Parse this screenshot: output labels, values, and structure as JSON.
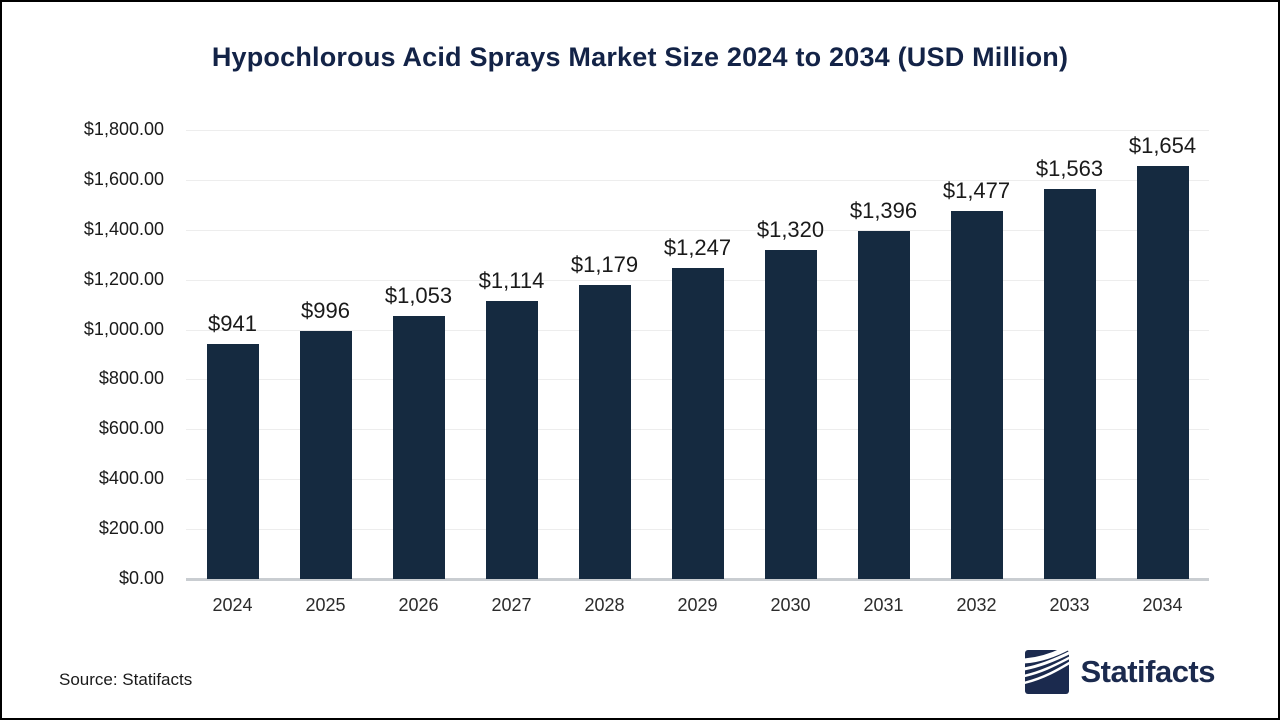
{
  "title": "Hypochlorous Acid Sprays Market Size 2024 to 2034 (USD Million)",
  "source": {
    "label": "Source: Statifacts"
  },
  "brand": {
    "name": "Statifacts",
    "icon": "statifacts-wave-logo",
    "color": "#1b2a4e"
  },
  "colors": {
    "bar": "#152a40",
    "title": "#132347",
    "gridline": "#ededed",
    "baseline": "#c9cdd1",
    "text": "#1a1a1a"
  },
  "chart_data": {
    "type": "bar",
    "title": "Hypochlorous Acid Sprays Market Size 2024 to 2034 (USD Million)",
    "categories": [
      "2024",
      "2025",
      "2026",
      "2027",
      "2028",
      "2029",
      "2030",
      "2031",
      "2032",
      "2033",
      "2034"
    ],
    "values": [
      941,
      996,
      1053,
      1114,
      1179,
      1247,
      1320,
      1396,
      1477,
      1563,
      1654
    ],
    "value_labels": [
      "$941",
      "$996",
      "$1,053",
      "$1,114",
      "$1,179",
      "$1,247",
      "$1,320",
      "$1,396",
      "$1,477",
      "$1,563",
      "$1,654"
    ],
    "xlabel": "",
    "ylabel": "",
    "ylim": [
      0,
      1800
    ],
    "ytick_step": 200,
    "ytick_labels": [
      "$0.00",
      "$200.00",
      "$400.00",
      "$600.00",
      "$800.00",
      "$1,000.00",
      "$1,200.00",
      "$1,400.00",
      "$1,600.00",
      "$1,800.00"
    ],
    "grid": true,
    "legend": false,
    "bar_color": "#152a40"
  }
}
